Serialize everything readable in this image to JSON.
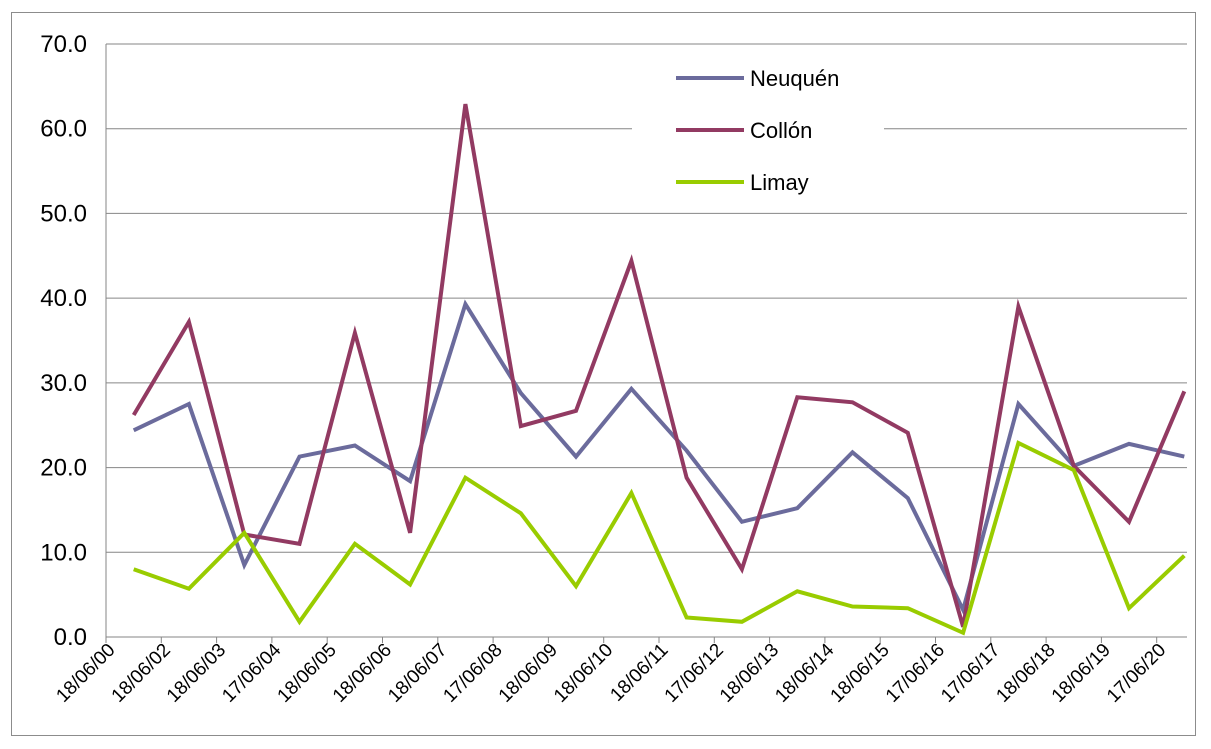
{
  "chart_data": {
    "type": "line",
    "title": "",
    "xlabel": "",
    "ylabel": "",
    "ylim": [
      0,
      70
    ],
    "yticks": [
      "0.0",
      "10.0",
      "20.0",
      "30.0",
      "40.0",
      "50.0",
      "60.0",
      "70.0"
    ],
    "grid": "horizontal",
    "legend_position": "top-right",
    "categories": [
      "18/06/00",
      "18/06/02",
      "18/06/03",
      "17/06/04",
      "18/06/05",
      "18/06/06",
      "18/06/07",
      "17/06/08",
      "18/06/09",
      "18/06/10",
      "18/06/11",
      "17/06/12",
      "18/06/13",
      "18/06/14",
      "18/06/15",
      "17/06/16",
      "17/06/17",
      "18/06/18",
      "18/06/19",
      "17/06/20"
    ],
    "series": [
      {
        "name": "Neuquén",
        "color": "#6b6b9c",
        "values": [
          24.4,
          27.5,
          8.5,
          21.3,
          22.6,
          18.4,
          39.3,
          28.8,
          21.3,
          29.3,
          22.0,
          13.6,
          15.2,
          21.8,
          16.4,
          3.2,
          27.5,
          20.2,
          22.8,
          21.3
        ]
      },
      {
        "name": "Collón",
        "color": "#923a62",
        "values": [
          26.2,
          37.2,
          12.1,
          11.0,
          35.9,
          12.3,
          62.9,
          24.9,
          26.7,
          44.4,
          18.8,
          8.0,
          28.3,
          27.7,
          24.1,
          1.2,
          39.0,
          20.2,
          13.6,
          29.0
        ]
      },
      {
        "name": "Limay",
        "color": "#99cc00",
        "values": [
          8.0,
          5.7,
          12.3,
          1.8,
          11.0,
          6.2,
          18.8,
          14.6,
          6.0,
          17.0,
          2.3,
          1.8,
          5.4,
          3.6,
          3.4,
          0.5,
          22.9,
          19.7,
          3.4,
          9.6
        ]
      }
    ]
  }
}
